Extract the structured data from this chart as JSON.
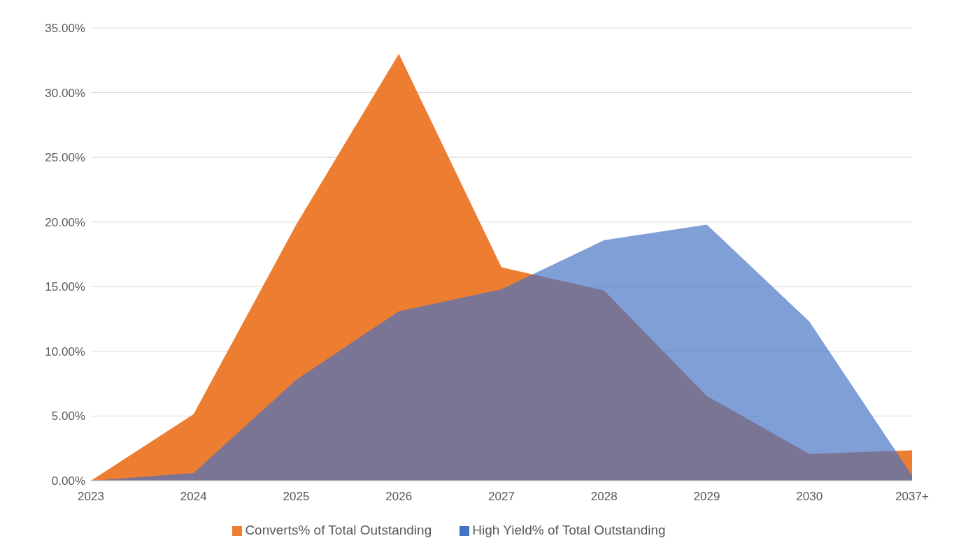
{
  "chart_data": {
    "type": "area",
    "categories": [
      "2023",
      "2024",
      "2025",
      "2026",
      "2027",
      "2028",
      "2029",
      "2030",
      "2037+"
    ],
    "series": [
      {
        "name": "Converts% of Total Outstanding",
        "color": "#ed7d31",
        "values": [
          0,
          5.15,
          19.8,
          33.0,
          16.5,
          14.7,
          6.55,
          2.07,
          2.35
        ]
      },
      {
        "name": "High Yield% of Total Outstanding",
        "color": "#4472c4",
        "values": [
          0,
          0.6,
          7.8,
          13.1,
          14.8,
          18.6,
          19.8,
          12.3,
          0.4
        ]
      }
    ],
    "ylim": [
      0,
      35
    ],
    "yticks": [
      {
        "value": 0,
        "label": "0.00%"
      },
      {
        "value": 5,
        "label": "5.00%"
      },
      {
        "value": 10,
        "label": "10.00%"
      },
      {
        "value": 15,
        "label": "15.00%"
      },
      {
        "value": 20,
        "label": "20.00%"
      },
      {
        "value": 25,
        "label": "25.00%"
      },
      {
        "value": 30,
        "label": "30.00%"
      },
      {
        "value": 35,
        "label": "35.00%"
      }
    ],
    "grid": "y",
    "legend": "bottom"
  }
}
